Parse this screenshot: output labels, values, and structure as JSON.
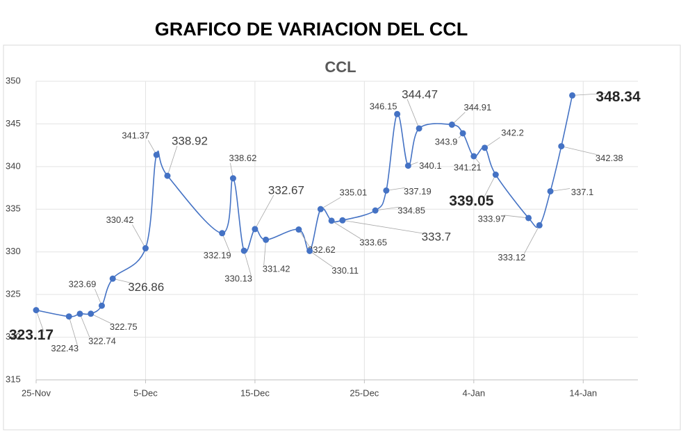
{
  "page_title": "GRAFICO DE VARIACION DEL CCL",
  "chart_data": {
    "type": "line",
    "title": "CCL",
    "x": [
      "25-Nov",
      "28-Nov",
      "29-Nov",
      "30-Nov",
      "1-Dec",
      "2-Dec",
      "5-Dec",
      "6-Dec",
      "7-Dec",
      "12-Dec",
      "13-Dec",
      "14-Dec",
      "15-Dec",
      "16-Dec",
      "19-Dec",
      "20-Dec",
      "21-Dec",
      "22-Dec",
      "23-Dec",
      "26-Dec",
      "27-Dec",
      "28-Dec",
      "29-Dec",
      "30-Dec",
      "2-Jan",
      "3-Jan",
      "4-Jan",
      "5-Jan",
      "6-Jan",
      "9-Jan",
      "10-Jan",
      "11-Jan",
      "12-Jan",
      "13-Jan"
    ],
    "series": [
      {
        "name": "CCL",
        "color": "#4472c4",
        "values": [
          323.17,
          322.43,
          322.74,
          322.75,
          323.69,
          326.86,
          330.42,
          341.37,
          338.92,
          332.19,
          338.62,
          330.13,
          332.67,
          331.42,
          332.62,
          330.11,
          335.01,
          333.65,
          333.7,
          334.85,
          337.19,
          346.15,
          340.1,
          344.47,
          344.91,
          343.9,
          341.21,
          342.2,
          339.05,
          333.97,
          333.12,
          337.1,
          342.38,
          348.34
        ]
      }
    ],
    "xlim": [
      "25-Nov",
      "19-Jan"
    ],
    "xticks": [
      "25-Nov",
      "5-Dec",
      "15-Dec",
      "25-Dec",
      "4-Jan",
      "14-Jan"
    ],
    "ylim": [
      315,
      350
    ],
    "yticks": [
      315,
      320,
      325,
      330,
      335,
      340,
      345,
      350
    ],
    "grid": true
  }
}
